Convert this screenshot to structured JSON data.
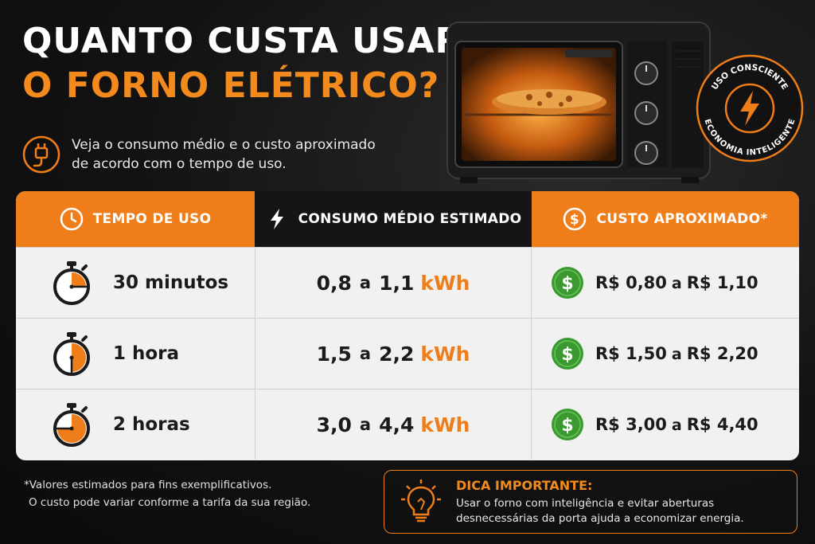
{
  "title": {
    "line1": "QUANTO CUSTA USAR",
    "line2": "O FORNO ELÉTRICO?"
  },
  "subtitle": {
    "line1": "Veja o consumo médio e o custo aproximado",
    "line2": "de acordo com o tempo de uso."
  },
  "badge": {
    "top": "USO CONSCIENTE",
    "bottom": "ECONOMIA INTELIGENTE"
  },
  "table": {
    "headers": {
      "time": "TEMPO DE USO",
      "consumption": "CONSUMO MÉDIO ESTIMADO",
      "cost": "CUSTO APROXIMADO*"
    },
    "separator": "a",
    "unit": "kWh",
    "rows": [
      {
        "time": "30 minutos",
        "kwh_min": "0,8",
        "kwh_max": "1,1",
        "cost_min": "R$ 0,80",
        "cost_max": "R$ 1,10",
        "fill_fraction": 0.25
      },
      {
        "time": "1 hora",
        "kwh_min": "1,5",
        "kwh_max": "2,2",
        "cost_min": "R$ 1,50",
        "cost_max": "R$ 2,20",
        "fill_fraction": 0.5
      },
      {
        "time": "2 horas",
        "kwh_min": "3,0",
        "kwh_max": "4,4",
        "cost_min": "R$ 3,00",
        "cost_max": "R$ 4,40",
        "fill_fraction": 0.75
      }
    ]
  },
  "footnote": {
    "line1": "*Valores estimados para fins exemplificativos.",
    "line2": "O custo pode variar conforme a tarifa da sua região."
  },
  "tip": {
    "heading": "DICA IMPORTANTE:",
    "line1": "Usar o forno com inteligência e evitar aberturas",
    "line2": "desnecessárias da porta ajuda a economizar energia."
  },
  "colors": {
    "accent": "#ef7d1a",
    "dark": "#151515",
    "coin_green": "#3a9a2f"
  }
}
